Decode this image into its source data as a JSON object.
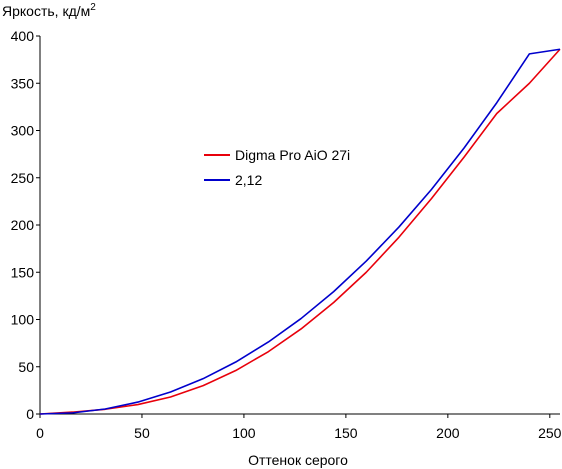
{
  "chart_data": {
    "type": "line",
    "title": "",
    "xlabel": "Оттенок серого",
    "ylabel_text": "Яркость, кд/м",
    "ylabel_sup": "2",
    "xlim": [
      0,
      255
    ],
    "ylim": [
      0,
      400
    ],
    "xticks": [
      "0",
      "50",
      "100",
      "150",
      "200",
      "250"
    ],
    "yticks": [
      "0",
      "50",
      "100",
      "150",
      "200",
      "250",
      "300",
      "350",
      "400"
    ],
    "grid": false,
    "legend_position": "center-left",
    "series": [
      {
        "name": "Digma Pro AiO 27i",
        "color": "#e8000b",
        "x": [
          0,
          16,
          32,
          48,
          64,
          80,
          96,
          112,
          128,
          144,
          160,
          176,
          192,
          208,
          224,
          240,
          255
        ],
        "y": [
          0,
          2,
          5,
          10,
          18,
          30,
          46,
          66,
          90,
          118,
          150,
          187,
          228,
          272,
          318,
          350,
          386
        ]
      },
      {
        "name": "2,12",
        "color": "#0000cc",
        "x": [
          0,
          16,
          32,
          48,
          64,
          80,
          96,
          112,
          128,
          144,
          160,
          176,
          192,
          208,
          224,
          240,
          255
        ],
        "y": [
          0,
          1.2,
          5.3,
          12.6,
          23.3,
          37.4,
          55.0,
          76.2,
          101.0,
          129.5,
          161.8,
          197.8,
          237.7,
          281.6,
          329.4,
          381.1,
          386.0
        ]
      }
    ]
  }
}
